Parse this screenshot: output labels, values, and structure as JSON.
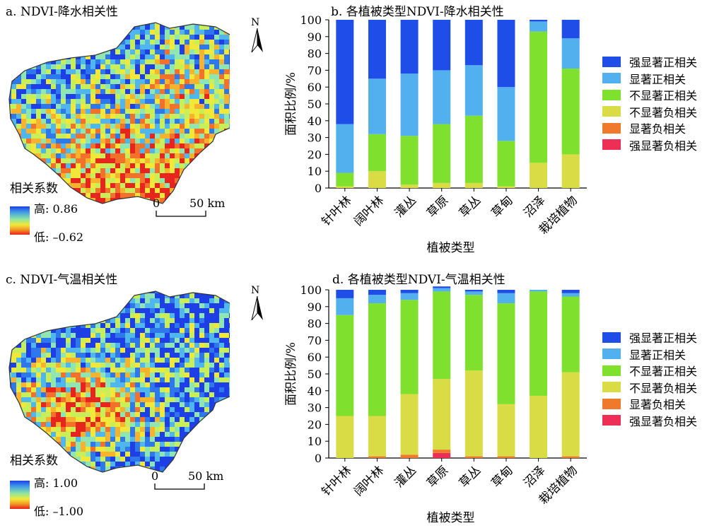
{
  "maps": [
    {
      "title": "a. NDVI-降水相关性",
      "legend_title": "相关系数",
      "high_label": "高: 0.86",
      "low_label": "低: –0.62",
      "scale_zero": "0",
      "scale_distance": "50 km",
      "north_label": "N"
    },
    {
      "title": "c. NDVI-气温相关性",
      "legend_title": "相关系数",
      "high_label": "高: 1.00",
      "low_label": "低: –1.00",
      "scale_zero": "0",
      "scale_distance": "50 km",
      "north_label": "N"
    }
  ],
  "legend_colors": [
    "#1f4de8",
    "#52b0ef",
    "#7fe02e",
    "#d9dc45",
    "#ef7a2c",
    "#ee2f55"
  ],
  "chart_data": [
    {
      "type": "bar",
      "stacked": true,
      "title": "b. 各植被类型NDVI-降水相关性",
      "xlabel": "植被类型",
      "ylabel": "面积比例/%",
      "ylim": [
        0,
        100
      ],
      "yticks": [
        0,
        10,
        20,
        30,
        40,
        50,
        60,
        70,
        80,
        90,
        100
      ],
      "categories": [
        "针叶林",
        "阔叶林",
        "灌丛",
        "草原",
        "草丛",
        "草甸",
        "沼泽",
        "栽培植物"
      ],
      "series": [
        {
          "name": "强显著负相关",
          "color": "#ee2f55",
          "values": [
            0,
            0,
            0,
            0,
            0,
            0,
            0,
            0
          ]
        },
        {
          "name": "显著负相关",
          "color": "#ef7a2c",
          "values": [
            0,
            0,
            0,
            0,
            0,
            0,
            0,
            0
          ]
        },
        {
          "name": "不显著负相关",
          "color": "#d9dc45",
          "values": [
            1,
            10,
            2,
            3,
            3,
            1,
            15,
            20
          ]
        },
        {
          "name": "不显著正相关",
          "color": "#7fe02e",
          "values": [
            8,
            22,
            29,
            35,
            40,
            27,
            78,
            51
          ]
        },
        {
          "name": "显著正相关",
          "color": "#52b0ef",
          "values": [
            29,
            33,
            37,
            32,
            30,
            32,
            6,
            18
          ]
        },
        {
          "name": "强显著正相关",
          "color": "#1f4de8",
          "values": [
            62,
            35,
            32,
            30,
            27,
            40,
            1,
            11
          ]
        }
      ],
      "legend": [
        "强显著正相关",
        "显著正相关",
        "不显著正相关",
        "不显著负相关",
        "显著负相关",
        "强显著负相关"
      ],
      "legend_position": "right"
    },
    {
      "type": "bar",
      "stacked": true,
      "title": "d. 各植被类型NDVI-气温相关性",
      "xlabel": "植被类型",
      "ylabel": "面积比例/%",
      "ylim": [
        0,
        100
      ],
      "yticks": [
        0,
        10,
        20,
        30,
        40,
        50,
        60,
        70,
        80,
        90,
        100
      ],
      "categories": [
        "针叶林",
        "阔叶林",
        "灌丛",
        "草原",
        "草丛",
        "草甸",
        "沼泽",
        "栽培植物"
      ],
      "series": [
        {
          "name": "强显著负相关",
          "color": "#ee2f55",
          "values": [
            0,
            0,
            0,
            3,
            0,
            0,
            0,
            0
          ]
        },
        {
          "name": "显著负相关",
          "color": "#ef7a2c",
          "values": [
            0,
            1,
            2,
            2,
            1,
            1,
            0,
            1
          ]
        },
        {
          "name": "不显著负相关",
          "color": "#d9dc45",
          "values": [
            25,
            24,
            36,
            42,
            51,
            31,
            37,
            50
          ]
        },
        {
          "name": "不显著正相关",
          "color": "#7fe02e",
          "values": [
            60,
            67,
            56,
            52,
            45,
            60,
            62,
            45
          ]
        },
        {
          "name": "显著正相关",
          "color": "#52b0ef",
          "values": [
            10,
            5,
            4,
            2,
            2,
            6,
            1,
            2
          ]
        },
        {
          "name": "强显著正相关",
          "color": "#1f4de8",
          "values": [
            5,
            3,
            2,
            1,
            1,
            2,
            0,
            2
          ]
        }
      ],
      "legend": [
        "强显著正相关",
        "显著正相关",
        "不显著正相关",
        "不显著负相关",
        "显著负相关",
        "强显著负相关"
      ],
      "legend_position": "right"
    }
  ]
}
